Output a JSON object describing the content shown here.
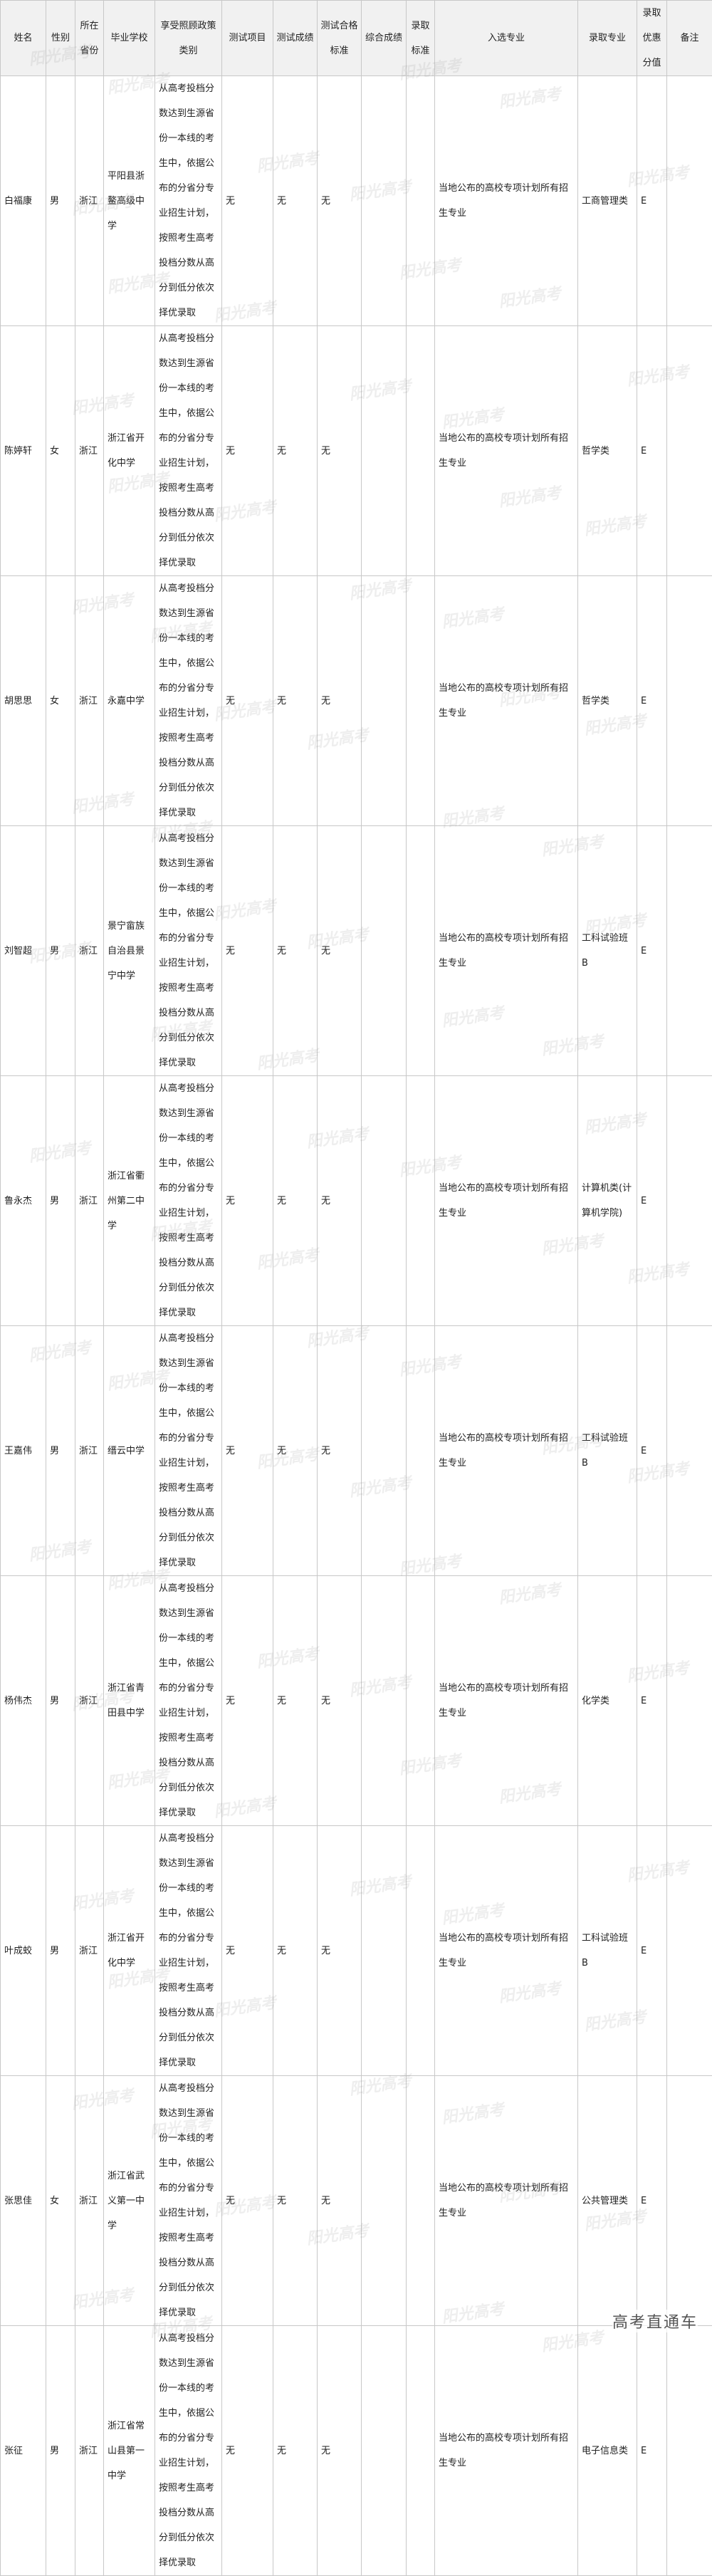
{
  "headers": [
    "姓名",
    "性别",
    "所在省份",
    "毕业学校",
    "享受照顾政策类别",
    "测试项目",
    "测试成绩",
    "测试合格标准",
    "综合成绩",
    "录取标准",
    "入选专业",
    "录取专业",
    "录取优惠分值",
    "备注"
  ],
  "policy_text": "从高考投档分数达到生源省份一本线的考生中，依据公布的分省分专业招生计划，按照考生高考投档分数从高分到低分依次择优录取",
  "selected_major_text": "当地公布的高校专项计划所有招生专业",
  "rows": [
    {
      "name": "白福康",
      "gender": "男",
      "province": "浙江",
      "school": "平阳县浙鳌高级中学",
      "test_item": "无",
      "test_score": "无",
      "test_standard": "无",
      "total": "",
      "standard": "",
      "major": "工商管理类",
      "bonus": "E",
      "note": ""
    },
    {
      "name": "陈婷轩",
      "gender": "女",
      "province": "浙江",
      "school": "浙江省开化中学",
      "test_item": "无",
      "test_score": "无",
      "test_standard": "无",
      "total": "",
      "standard": "",
      "major": "哲学类",
      "bonus": "E",
      "note": ""
    },
    {
      "name": "胡思思",
      "gender": "女",
      "province": "浙江",
      "school": "永嘉中学",
      "test_item": "无",
      "test_score": "无",
      "test_standard": "无",
      "total": "",
      "standard": "",
      "major": "哲学类",
      "bonus": "E",
      "note": ""
    },
    {
      "name": "刘智超",
      "gender": "男",
      "province": "浙江",
      "school": "景宁畲族自治县景宁中学",
      "test_item": "无",
      "test_score": "无",
      "test_standard": "无",
      "total": "",
      "standard": "",
      "major": "工科试验班B",
      "bonus": "E",
      "note": ""
    },
    {
      "name": "鲁永杰",
      "gender": "男",
      "province": "浙江",
      "school": "浙江省衢州第二中学",
      "test_item": "无",
      "test_score": "无",
      "test_standard": "无",
      "total": "",
      "standard": "",
      "major": "计算机类(计算机学院)",
      "bonus": "E",
      "note": ""
    },
    {
      "name": "王嘉伟",
      "gender": "男",
      "province": "浙江",
      "school": "缙云中学",
      "test_item": "无",
      "test_score": "无",
      "test_standard": "无",
      "total": "",
      "standard": "",
      "major": "工科试验班B",
      "bonus": "E",
      "note": ""
    },
    {
      "name": "杨伟杰",
      "gender": "男",
      "province": "浙江",
      "school": "浙江省青田县中学",
      "test_item": "无",
      "test_score": "无",
      "test_standard": "无",
      "total": "",
      "standard": "",
      "major": "化学类",
      "bonus": "E",
      "note": ""
    },
    {
      "name": "叶成蛟",
      "gender": "男",
      "province": "浙江",
      "school": "浙江省开化中学",
      "test_item": "无",
      "test_score": "无",
      "test_standard": "无",
      "total": "",
      "standard": "",
      "major": "工科试验班B",
      "bonus": "E",
      "note": ""
    },
    {
      "name": "张思佳",
      "gender": "女",
      "province": "浙江",
      "school": "浙江省武义第一中学",
      "test_item": "无",
      "test_score": "无",
      "test_standard": "无",
      "total": "",
      "standard": "",
      "major": "公共管理类",
      "bonus": "E",
      "note": ""
    },
    {
      "name": "张征",
      "gender": "男",
      "province": "浙江",
      "school": "浙江省常山县第一中学",
      "test_item": "无",
      "test_score": "无",
      "test_standard": "无",
      "total": "",
      "standard": "",
      "major": "电子信息类",
      "bonus": "E",
      "note": ""
    }
  ],
  "watermark": "阳光高考",
  "footer_logo": "高考直通车"
}
